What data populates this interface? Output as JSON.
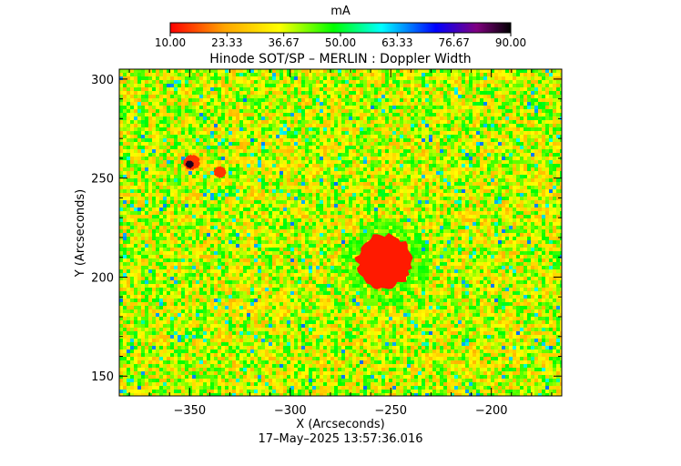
{
  "colorbar": {
    "unit": "mA",
    "ticks": [
      "10.00",
      "23.33",
      "36.67",
      "50.00",
      "63.33",
      "76.67",
      "90.00"
    ],
    "range": [
      10,
      90
    ],
    "colors": [
      "#ff0000",
      "#ffa500",
      "#ffff00",
      "#00ff00",
      "#00ffff",
      "#0000ff",
      "#800080",
      "#000000"
    ]
  },
  "chart_data": {
    "type": "heatmap",
    "title": "Hinode SOT/SP – MERLIN : Doppler Width",
    "xlabel": "X (Arcseconds)",
    "ylabel": "Y (Arcseconds)",
    "xlim": [
      -385,
      -165
    ],
    "ylim": [
      140,
      305
    ],
    "xticks": [
      -350,
      -300,
      -250,
      -200
    ],
    "yticks": [
      150,
      200,
      250,
      300
    ],
    "background_value_range": [
      25,
      50
    ],
    "features": [
      {
        "kind": "sunspot-umbra",
        "center": [
          -253,
          208
        ],
        "radius": 14,
        "value": 12
      },
      {
        "kind": "penumbra-ring",
        "center": [
          -253,
          208
        ],
        "radius": 22,
        "value": 45
      },
      {
        "kind": "pore",
        "center": [
          -349,
          258
        ],
        "radius": 4,
        "value": 14
      },
      {
        "kind": "pore-core",
        "center": [
          -350,
          257
        ],
        "radius": 2,
        "value": 88
      },
      {
        "kind": "pore",
        "center": [
          -335,
          253
        ],
        "radius": 3,
        "value": 14
      }
    ]
  },
  "footer": {
    "timestamp": "17–May–2025 13:57:36.016"
  }
}
